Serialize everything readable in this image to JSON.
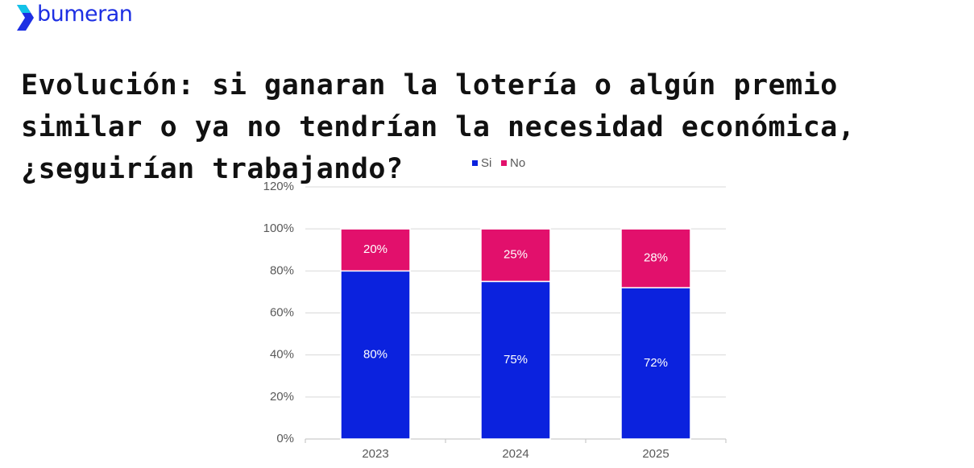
{
  "brand": "bumeran",
  "chart_data": {
    "type": "bar",
    "stacked": true,
    "title": "Evolución: si ganaran la lotería o algún premio similar o ya no tendrían la necesidad económica, ¿seguirían trabajando?",
    "categories": [
      "2023",
      "2024",
      "2025"
    ],
    "series": [
      {
        "name": "Si",
        "color": "#0b22de",
        "values": [
          80,
          75,
          72
        ],
        "value_labels": [
          "80%",
          "75%",
          "72%"
        ]
      },
      {
        "name": "No",
        "color": "#e2106c",
        "values": [
          20,
          25,
          28
        ],
        "value_labels": [
          "20%",
          "25%",
          "28%"
        ]
      }
    ],
    "ylim": [
      0,
      120
    ],
    "yticks": [
      {
        "value": 0,
        "label": "0%"
      },
      {
        "value": 20,
        "label": "20%"
      },
      {
        "value": 40,
        "label": "40%"
      },
      {
        "value": 60,
        "label": "60%"
      },
      {
        "value": 80,
        "label": "80%"
      },
      {
        "value": 100,
        "label": "100%"
      },
      {
        "value": 120,
        "label": "120%"
      }
    ],
    "grid": true,
    "legend": "top"
  }
}
